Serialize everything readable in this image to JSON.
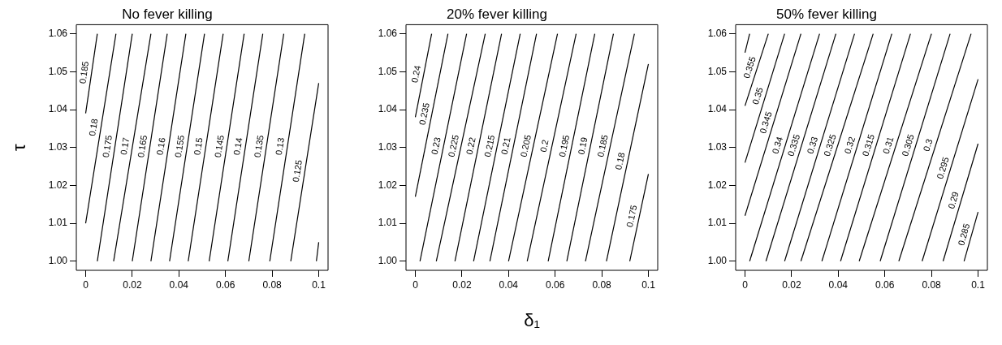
{
  "chart_data": [
    {
      "type": "line",
      "title": "No fever killing",
      "ylabel": "τ",
      "xlim": [
        -0.004,
        0.104
      ],
      "ylim": [
        0.9976,
        1.0624
      ],
      "xticks": [
        0,
        0.02,
        0.04,
        0.06,
        0.08,
        0.1
      ],
      "yticks": [
        {
          "value": 1,
          "label": "1.00"
        },
        {
          "value": 1.01,
          "label": "1.01"
        },
        {
          "value": 1.02,
          "label": "1.02"
        },
        {
          "value": 1.03,
          "label": "1.03"
        },
        {
          "value": 1.04,
          "label": "1.04"
        },
        {
          "value": 1.05,
          "label": "1.05"
        },
        {
          "value": 1.06,
          "label": "1.06"
        }
      ],
      "grid": false,
      "legend": false,
      "marker": "none",
      "line_style": "solid",
      "series": [
        {
          "name": "0.185",
          "color": "#000000",
          "x": [
            0,
            0.005
          ],
          "values": [
            1.039,
            1.06
          ]
        },
        {
          "name": "0.18",
          "color": "#000000",
          "x": [
            0,
            0.013
          ],
          "values": [
            1.01,
            1.06
          ]
        },
        {
          "name": "0.175",
          "color": "#000000",
          "x": [
            0.005,
            0.02
          ],
          "values": [
            1,
            1.06
          ]
        },
        {
          "name": "0.17",
          "color": "#000000",
          "x": [
            0.012,
            0.028
          ],
          "values": [
            1,
            1.06
          ]
        },
        {
          "name": "0.165",
          "color": "#000000",
          "x": [
            0.02,
            0.035
          ],
          "values": [
            1,
            1.06
          ]
        },
        {
          "name": "0.16",
          "color": "#000000",
          "x": [
            0.028,
            0.043
          ],
          "values": [
            1,
            1.06
          ]
        },
        {
          "name": "0.155",
          "color": "#000000",
          "x": [
            0.036,
            0.051
          ],
          "values": [
            1,
            1.06
          ]
        },
        {
          "name": "0.15",
          "color": "#000000",
          "x": [
            0.044,
            0.059
          ],
          "values": [
            1,
            1.06
          ]
        },
        {
          "name": "0.145",
          "color": "#000000",
          "x": [
            0.053,
            0.068
          ],
          "values": [
            1,
            1.06
          ]
        },
        {
          "name": "0.14",
          "color": "#000000",
          "x": [
            0.061,
            0.076
          ],
          "values": [
            1,
            1.06
          ]
        },
        {
          "name": "0.135",
          "color": "#000000",
          "x": [
            0.07,
            0.085
          ],
          "values": [
            1,
            1.06
          ]
        },
        {
          "name": "0.13",
          "color": "#000000",
          "x": [
            0.079,
            0.094
          ],
          "values": [
            1,
            1.06
          ]
        },
        {
          "name": "0.125",
          "color": "#000000",
          "x": [
            0.088,
            0.1
          ],
          "values": [
            1,
            1.047
          ]
        },
        {
          "color": "#000000",
          "x": [
            0.099,
            0.1
          ],
          "values": [
            1,
            1.005
          ]
        }
      ]
    },
    {
      "type": "line",
      "title": "20% fever killing",
      "xlabel": "δ₁",
      "xlim": [
        -0.004,
        0.104
      ],
      "ylim": [
        0.9976,
        1.0624
      ],
      "xticks": [
        0,
        0.02,
        0.04,
        0.06,
        0.08,
        0.1
      ],
      "yticks": [
        {
          "value": 1,
          "label": "1.00"
        },
        {
          "value": 1.01,
          "label": "1.01"
        },
        {
          "value": 1.02,
          "label": "1.02"
        },
        {
          "value": 1.03,
          "label": "1.03"
        },
        {
          "value": 1.04,
          "label": "1.04"
        },
        {
          "value": 1.05,
          "label": "1.05"
        },
        {
          "value": 1.06,
          "label": "1.06"
        }
      ],
      "grid": false,
      "legend": false,
      "marker": "none",
      "line_style": "solid",
      "series": [
        {
          "name": "0.24",
          "color": "#000000",
          "x": [
            0,
            0.007
          ],
          "values": [
            1.038,
            1.06
          ]
        },
        {
          "name": "0.235",
          "color": "#000000",
          "x": [
            0,
            0.014
          ],
          "values": [
            1.017,
            1.06
          ]
        },
        {
          "name": "0.23",
          "color": "#000000",
          "x": [
            0.002,
            0.022
          ],
          "values": [
            1,
            1.06
          ]
        },
        {
          "name": "0.225",
          "color": "#000000",
          "x": [
            0.009,
            0.03
          ],
          "values": [
            1,
            1.06
          ]
        },
        {
          "name": "0.22",
          "color": "#000000",
          "x": [
            0.017,
            0.037
          ],
          "values": [
            1,
            1.06
          ]
        },
        {
          "name": "0.215",
          "color": "#000000",
          "x": [
            0.025,
            0.045
          ],
          "values": [
            1,
            1.06
          ]
        },
        {
          "name": "0.21",
          "color": "#000000",
          "x": [
            0.032,
            0.052
          ],
          "values": [
            1,
            1.06
          ]
        },
        {
          "name": "0.205",
          "color": "#000000",
          "x": [
            0.04,
            0.061
          ],
          "values": [
            1,
            1.06
          ]
        },
        {
          "name": "0.2",
          "color": "#000000",
          "x": [
            0.048,
            0.069
          ],
          "values": [
            1,
            1.06
          ]
        },
        {
          "name": "0.195",
          "color": "#000000",
          "x": [
            0.057,
            0.077
          ],
          "values": [
            1,
            1.06
          ]
        },
        {
          "name": "0.19",
          "color": "#000000",
          "x": [
            0.065,
            0.085
          ],
          "values": [
            1,
            1.06
          ]
        },
        {
          "name": "0.185",
          "color": "#000000",
          "x": [
            0.073,
            0.094
          ],
          "values": [
            1,
            1.06
          ]
        },
        {
          "name": "0.18",
          "color": "#000000",
          "x": [
            0.082,
            0.1
          ],
          "values": [
            1,
            1.052
          ]
        },
        {
          "name": "0.175",
          "color": "#000000",
          "x": [
            0.092,
            0.1
          ],
          "values": [
            1,
            1.023
          ]
        }
      ]
    },
    {
      "type": "line",
      "title": "50% fever killing",
      "xlim": [
        -0.004,
        0.104
      ],
      "ylim": [
        0.9976,
        1.0624
      ],
      "xticks": [
        0,
        0.02,
        0.04,
        0.06,
        0.08,
        0.1
      ],
      "yticks": [
        {
          "value": 1,
          "label": "1.00"
        },
        {
          "value": 1.01,
          "label": "1.01"
        },
        {
          "value": 1.02,
          "label": "1.02"
        },
        {
          "value": 1.03,
          "label": "1.03"
        },
        {
          "value": 1.04,
          "label": "1.04"
        },
        {
          "value": 1.05,
          "label": "1.05"
        },
        {
          "value": 1.06,
          "label": "1.06"
        }
      ],
      "grid": false,
      "legend": false,
      "marker": "none",
      "line_style": "solid",
      "series": [
        {
          "color": "#000000",
          "x": [
            0,
            0.002
          ],
          "values": [
            1.055,
            1.06
          ]
        },
        {
          "name": "0.355",
          "color": "#000000",
          "x": [
            0,
            0.01
          ],
          "values": [
            1.041,
            1.06
          ]
        },
        {
          "name": "0.35",
          "color": "#000000",
          "x": [
            0,
            0.017
          ],
          "values": [
            1.026,
            1.06
          ]
        },
        {
          "name": "0.345",
          "color": "#000000",
          "x": [
            0,
            0.024
          ],
          "values": [
            1.012,
            1.06
          ]
        },
        {
          "name": "0.34",
          "color": "#000000",
          "x": [
            0.002,
            0.032
          ],
          "values": [
            1,
            1.06
          ]
        },
        {
          "name": "0.335",
          "color": "#000000",
          "x": [
            0.009,
            0.039
          ],
          "values": [
            1,
            1.06
          ]
        },
        {
          "name": "0.33",
          "color": "#000000",
          "x": [
            0.017,
            0.047
          ],
          "values": [
            1,
            1.06
          ]
        },
        {
          "name": "0.325",
          "color": "#000000",
          "x": [
            0.024,
            0.055
          ],
          "values": [
            1,
            1.06
          ]
        },
        {
          "name": "0.32",
          "color": "#000000",
          "x": [
            0.033,
            0.063
          ],
          "values": [
            1,
            1.06
          ]
        },
        {
          "name": "0.315",
          "color": "#000000",
          "x": [
            0.041,
            0.071
          ],
          "values": [
            1,
            1.06
          ]
        },
        {
          "name": "0.31",
          "color": "#000000",
          "x": [
            0.049,
            0.08
          ],
          "values": [
            1,
            1.06
          ]
        },
        {
          "name": "0.305",
          "color": "#000000",
          "x": [
            0.058,
            0.088
          ],
          "values": [
            1,
            1.06
          ]
        },
        {
          "name": "0.3",
          "color": "#000000",
          "x": [
            0.066,
            0.097
          ],
          "values": [
            1,
            1.06
          ]
        },
        {
          "name": "0.295",
          "color": "#000000",
          "x": [
            0.076,
            0.1
          ],
          "values": [
            1,
            1.048
          ]
        },
        {
          "name": "0.29",
          "color": "#000000",
          "x": [
            0.085,
            0.1
          ],
          "values": [
            1,
            1.031
          ]
        },
        {
          "name": "0.285",
          "color": "#000000",
          "x": [
            0.094,
            0.1
          ],
          "values": [
            1,
            1.013
          ]
        }
      ]
    }
  ]
}
